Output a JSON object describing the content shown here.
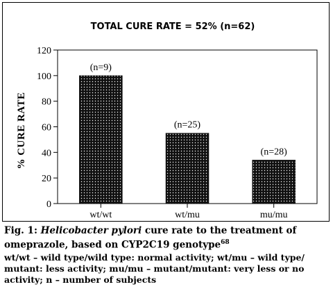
{
  "chart_data": {
    "type": "bar",
    "title": "TOTAL CURE RATE = 52% (n=62)",
    "ylabel": "% CURE RATE",
    "xlabel": "",
    "ylim": [
      0,
      120
    ],
    "yticks": [
      0,
      20,
      40,
      60,
      80,
      100,
      120
    ],
    "categories": [
      "wt/wt",
      "wt/mu",
      "mu/mu"
    ],
    "values": [
      100,
      55,
      34
    ],
    "data_labels": [
      "(n=9)",
      "(n=25)",
      "(n=28)"
    ],
    "bar_color": "#111111",
    "bar_pattern": "white-dotted",
    "grid": false
  },
  "caption": {
    "fig_label": "Fig. 1:",
    "species": "Helicobacter pylori",
    "text": "cure rate to the treatment of omeprazole, based on CYP2C19 genotype",
    "ref": "68",
    "notes": "wt/wt – wild type/wild type: normal activity; wt/mu – wild type/ mutant: less activity; mu/mu – mutant/mutant: very less or no activity; n – number of subjects"
  }
}
